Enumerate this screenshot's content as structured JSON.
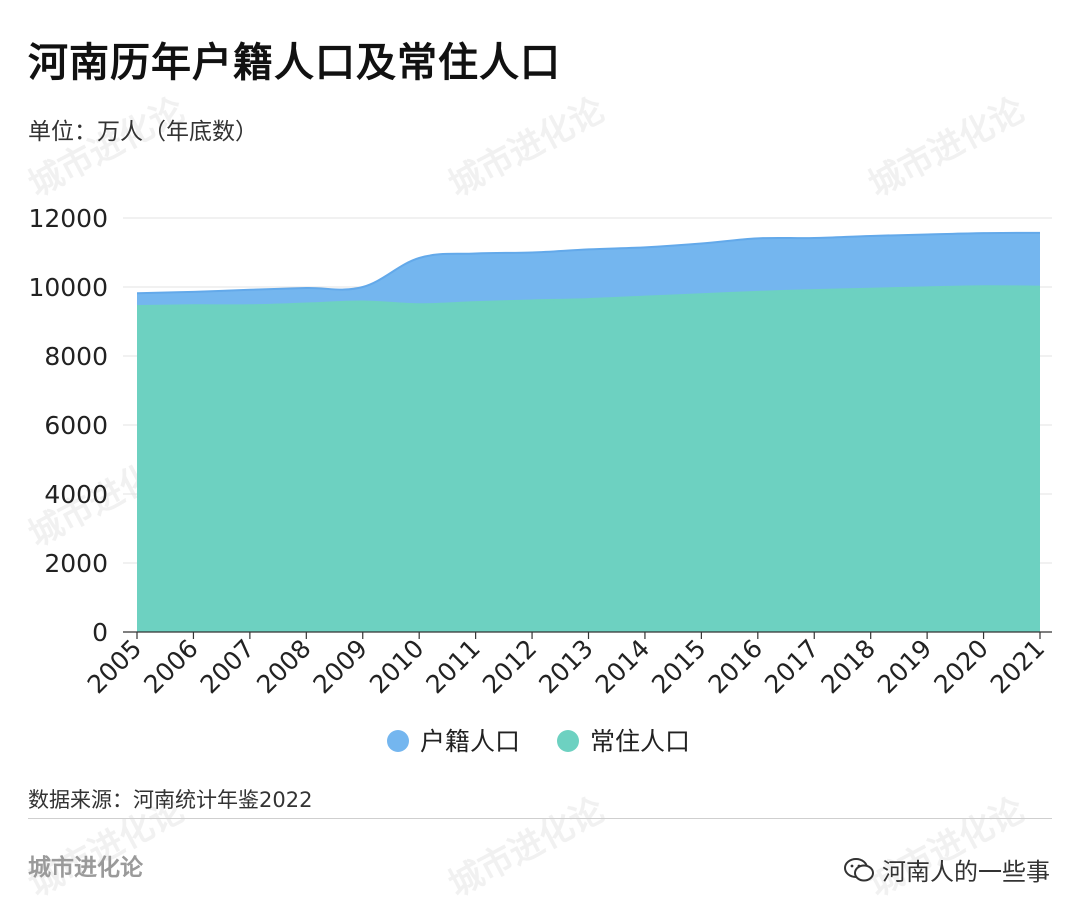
{
  "title": "河南历年户籍人口及常住人口",
  "unit": "单位：万人（年底数）",
  "source": "数据来源：河南统计年鉴2022",
  "brand": "城市进化论",
  "account": "河南人的一些事",
  "watermark": "城市进化论",
  "colors": {
    "huji": "#74b6ef",
    "huji_line": "#63a9ea",
    "changzhu": "#6dd1c1",
    "grid": "#e3e3e3",
    "axis": "#333333"
  },
  "chart_data": {
    "type": "area",
    "title": "河南历年户籍人口及常住人口",
    "xlabel": "",
    "ylabel": "",
    "ylim": [
      0,
      12000
    ],
    "yticks": [
      0,
      2000,
      4000,
      6000,
      8000,
      10000,
      12000
    ],
    "x": [
      "2005",
      "2006",
      "2007",
      "2008",
      "2009",
      "2010",
      "2011",
      "2012",
      "2013",
      "2014",
      "2015",
      "2016",
      "2017",
      "2018",
      "2019",
      "2020",
      "2021"
    ],
    "grid": true,
    "legend_position": "bottom-center",
    "series": [
      {
        "name": "户籍人口",
        "color_key": "huji",
        "values": [
          9820,
          9860,
          9920,
          9970,
          10000,
          10840,
          10970,
          11000,
          11090,
          11150,
          11260,
          11410,
          11420,
          11480,
          11520,
          11560,
          11570
        ]
      },
      {
        "name": "常住人口",
        "color_key": "changzhu",
        "values": [
          9450,
          9470,
          9470,
          9520,
          9580,
          9500,
          9560,
          9610,
          9650,
          9720,
          9790,
          9860,
          9910,
          9950,
          9990,
          10020,
          10010
        ]
      }
    ]
  }
}
